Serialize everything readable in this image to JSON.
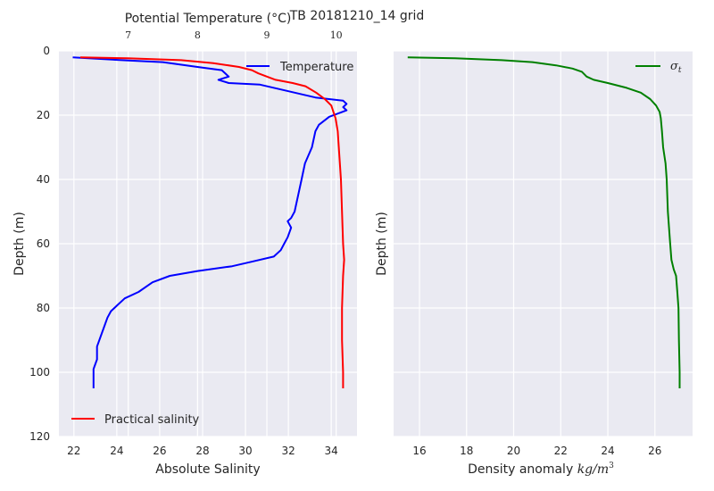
{
  "title": "TB 20181210_14 grid",
  "chart_data": [
    {
      "type": "line",
      "xlabel": "Absolute Salinity",
      "ylabel": "Depth (m)",
      "xlim": [
        21.3,
        35.2
      ],
      "ylim": [
        120,
        0
      ],
      "x_ticks": [
        22,
        24,
        26,
        28,
        30,
        32,
        34
      ],
      "y_ticks": [
        0,
        20,
        40,
        60,
        80,
        100,
        120
      ],
      "twin_x": {
        "label": "Potential Temperature (°C)",
        "lim": [
          6.0,
          10.3
        ],
        "ticks": [
          7,
          8,
          9,
          10
        ]
      },
      "legend_top": {
        "placement": "upper right",
        "label": "Temperature"
      },
      "legend_bottom": {
        "placement": "lower left",
        "label": "Practical salinity"
      },
      "series": [
        {
          "name": "Temperature",
          "axis": "top",
          "color": "#0000ff",
          "points": [
            [
              6.2,
              2
            ],
            [
              7.0,
              3
            ],
            [
              7.5,
              3.5
            ],
            [
              8.0,
              5
            ],
            [
              8.35,
              6
            ],
            [
              8.45,
              8
            ],
            [
              8.3,
              9
            ],
            [
              8.45,
              10
            ],
            [
              8.9,
              10.5
            ],
            [
              9.2,
              12
            ],
            [
              9.7,
              14.5
            ],
            [
              10.1,
              15.5
            ],
            [
              10.15,
              16.5
            ],
            [
              10.1,
              17.5
            ],
            [
              10.15,
              18.5
            ],
            [
              9.9,
              20.5
            ],
            [
              9.75,
              23
            ],
            [
              9.7,
              25
            ],
            [
              9.65,
              30
            ],
            [
              9.55,
              35
            ],
            [
              9.5,
              40
            ],
            [
              9.45,
              45
            ],
            [
              9.4,
              50
            ],
            [
              9.35,
              52
            ],
            [
              9.3,
              53
            ],
            [
              9.35,
              55
            ],
            [
              9.3,
              58
            ],
            [
              9.25,
              60
            ],
            [
              9.2,
              62
            ],
            [
              9.1,
              64
            ],
            [
              8.8,
              65.5
            ],
            [
              8.5,
              67
            ],
            [
              8.0,
              68.5
            ],
            [
              7.6,
              70
            ],
            [
              7.35,
              72
            ],
            [
              7.15,
              75
            ],
            [
              6.95,
              77
            ],
            [
              6.85,
              79
            ],
            [
              6.75,
              81
            ],
            [
              6.7,
              83
            ],
            [
              6.65,
              86
            ],
            [
              6.6,
              89
            ],
            [
              6.55,
              92
            ],
            [
              6.55,
              96
            ],
            [
              6.5,
              99
            ],
            [
              6.5,
              105
            ]
          ]
        },
        {
          "name": "Practical salinity",
          "axis": "bottom",
          "color": "#ff0000",
          "points": [
            [
              22.3,
              2
            ],
            [
              24.5,
              2.3
            ],
            [
              27.0,
              2.9
            ],
            [
              28.5,
              3.8
            ],
            [
              29.7,
              5
            ],
            [
              30.3,
              6
            ],
            [
              30.6,
              7
            ],
            [
              31.0,
              8
            ],
            [
              31.4,
              9
            ],
            [
              32.2,
              10
            ],
            [
              32.8,
              11
            ],
            [
              33.3,
              13
            ],
            [
              33.7,
              15
            ],
            [
              34.0,
              17
            ],
            [
              34.1,
              19
            ],
            [
              34.2,
              21
            ],
            [
              34.3,
              25
            ],
            [
              34.35,
              30
            ],
            [
              34.45,
              40
            ],
            [
              34.5,
              50
            ],
            [
              34.55,
              60
            ],
            [
              34.6,
              65
            ],
            [
              34.55,
              70
            ],
            [
              34.5,
              80
            ],
            [
              34.5,
              90
            ],
            [
              34.55,
              100
            ],
            [
              34.55,
              105
            ]
          ]
        }
      ]
    },
    {
      "type": "line",
      "xlabel": "Density anomaly kg/m3",
      "ylabel": "Depth (m)",
      "xlim": [
        14.9,
        27.6
      ],
      "ylim": [
        120,
        0
      ],
      "x_ticks": [
        16,
        18,
        20,
        22,
        24,
        26
      ],
      "y_ticks": [
        0,
        20,
        40,
        60,
        80,
        100,
        120
      ],
      "legend": {
        "placement": "upper right",
        "label": "σt"
      },
      "series": [
        {
          "name": "σt",
          "color": "#008000",
          "points": [
            [
              15.5,
              2
            ],
            [
              17.5,
              2.3
            ],
            [
              19.5,
              2.9
            ],
            [
              20.8,
              3.5
            ],
            [
              21.8,
              4.5
            ],
            [
              22.5,
              5.5
            ],
            [
              22.9,
              6.5
            ],
            [
              23.1,
              8
            ],
            [
              23.4,
              9
            ],
            [
              24.0,
              10
            ],
            [
              24.8,
              11.5
            ],
            [
              25.4,
              13
            ],
            [
              25.8,
              15
            ],
            [
              26.05,
              17
            ],
            [
              26.2,
              19
            ],
            [
              26.25,
              21
            ],
            [
              26.3,
              25
            ],
            [
              26.35,
              30
            ],
            [
              26.45,
              35
            ],
            [
              26.5,
              40
            ],
            [
              26.55,
              50
            ],
            [
              26.6,
              55
            ],
            [
              26.65,
              60
            ],
            [
              26.7,
              65
            ],
            [
              26.8,
              68
            ],
            [
              26.9,
              70
            ],
            [
              26.95,
              75
            ],
            [
              27.0,
              80
            ],
            [
              27.02,
              90
            ],
            [
              27.05,
              100
            ],
            [
              27.05,
              105
            ]
          ]
        }
      ]
    }
  ]
}
